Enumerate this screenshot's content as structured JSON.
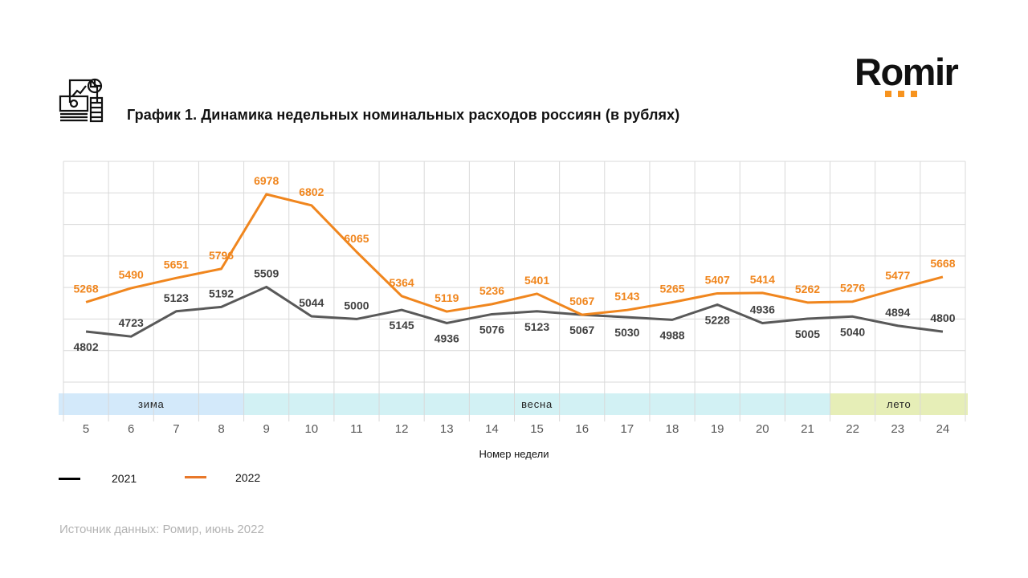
{
  "header": {
    "title": "График 1. Динамика недельных номинальных расходов россиян (в рублях)",
    "icon": "finance-report-icon",
    "logo_text": "Romir",
    "logo_accent": "#f7931e"
  },
  "footer": {
    "source": "Источник данных: Ромир, июнь 2022"
  },
  "chart_data": {
    "type": "line",
    "title": "График 1. Динамика недельных номинальных расходов россиян (в рублях)",
    "xlabel": "Номер недели",
    "ylabel": "",
    "x": [
      "5",
      "6",
      "7",
      "8",
      "9",
      "10",
      "11",
      "12",
      "13",
      "14",
      "15",
      "16",
      "17",
      "18",
      "19",
      "20",
      "21",
      "22",
      "23",
      "24"
    ],
    "ylim": [
      4000,
      7500
    ],
    "y_grid_step": 500,
    "grid": true,
    "y_tick_labels_visible": false,
    "series": [
      {
        "name": "2021",
        "color": "#595959",
        "legend_color": "#000000",
        "values": [
          4802,
          4723,
          5123,
          5192,
          5509,
          5044,
          5000,
          5145,
          4936,
          5076,
          5123,
          5067,
          5030,
          4988,
          5228,
          4936,
          5005,
          5040,
          4894,
          4800
        ],
        "label_position": [
          "below",
          "above",
          "above",
          "above",
          "above",
          "above",
          "above",
          "below",
          "below",
          "below",
          "below",
          "below",
          "below",
          "below",
          "below",
          "above",
          "below",
          "below",
          "above",
          "above"
        ]
      },
      {
        "name": "2022",
        "color": "#f0861e",
        "legend_color": "#e8782a",
        "values": [
          5268,
          5490,
          5651,
          5796,
          6978,
          6802,
          6065,
          5364,
          5119,
          5236,
          5401,
          5067,
          5143,
          5265,
          5407,
          5414,
          5262,
          5276,
          5477,
          5668
        ],
        "label_position": [
          "above",
          "above",
          "above",
          "above",
          "above",
          "above",
          "above",
          "above",
          "above",
          "above",
          "above",
          "above",
          "above",
          "above",
          "above",
          "above",
          "above",
          "above",
          "above",
          "above"
        ]
      }
    ],
    "seasons": [
      {
        "label": "зима",
        "from": "5",
        "to": "8",
        "color": "#d3e9fa"
      },
      {
        "label": "весна",
        "from": "9",
        "to": "21",
        "color": "#d2f1f4"
      },
      {
        "label": "лето",
        "from": "22",
        "to": "24",
        "color": "#e6eeb7"
      }
    ],
    "legend": {
      "placement": "bottom-left",
      "entries": [
        "2021",
        "2022"
      ]
    }
  }
}
